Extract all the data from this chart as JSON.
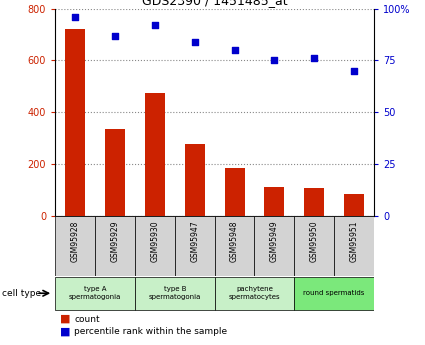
{
  "title": "GDS2390 / 1451485_at",
  "samples": [
    "GSM95928",
    "GSM95929",
    "GSM95930",
    "GSM95947",
    "GSM95948",
    "GSM95949",
    "GSM95950",
    "GSM95951"
  ],
  "counts": [
    720,
    335,
    475,
    275,
    185,
    110,
    108,
    85
  ],
  "percentile_ranks": [
    96,
    87,
    92,
    84,
    80,
    75,
    76,
    70
  ],
  "cell_type_groups": [
    {
      "label": "type A\nspermatogonia",
      "span": [
        0,
        2
      ],
      "color": "#c8f0c8"
    },
    {
      "label": "type B\nspermatogonia",
      "span": [
        2,
        4
      ],
      "color": "#c8f0c8"
    },
    {
      "label": "pachytene\nspermatocytes",
      "span": [
        4,
        6
      ],
      "color": "#c8f0c8"
    },
    {
      "label": "round spermatids",
      "span": [
        6,
        8
      ],
      "color": "#7be87b"
    }
  ],
  "bar_color": "#cc2200",
  "dot_color": "#0000cc",
  "left_yticks": [
    0,
    200,
    400,
    600,
    800
  ],
  "right_yticks": [
    0,
    25,
    50,
    75,
    100
  ],
  "left_ylim": [
    0,
    800
  ],
  "right_ylim": [
    0,
    100
  ],
  "left_ycolor": "#cc2200",
  "right_ycolor": "#0000cc",
  "cell_type_label": "cell type",
  "legend_count_label": "count",
  "legend_percentile_label": "percentile rank within the sample",
  "background_color": "#ffffff",
  "grid_color": "#888888",
  "sample_box_color": "#d3d3d3"
}
